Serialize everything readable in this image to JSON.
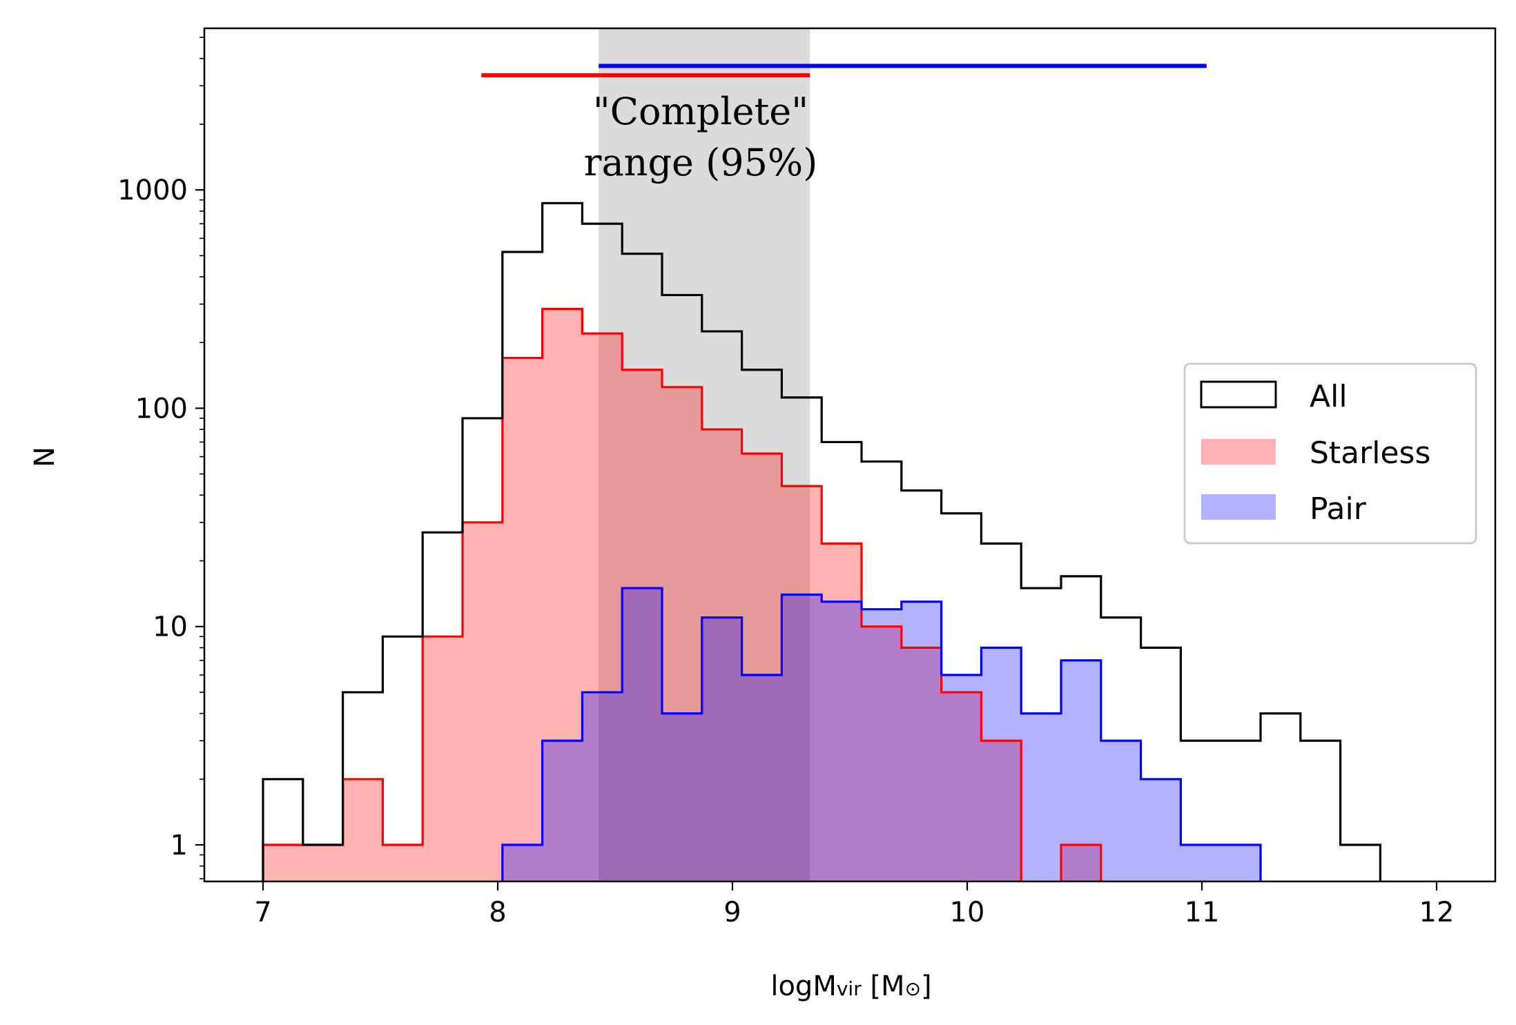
{
  "chart_data": {
    "type": "histogram",
    "xlabel": "logM",
    "xlabel_sub": "vir",
    "xlabel_unit_open": " [M",
    "xlabel_unit_sub": "⊙",
    "xlabel_unit_close": "]",
    "ylabel": "N",
    "xlim": [
      6.75,
      12.25
    ],
    "ylim": [
      0.68,
      5500
    ],
    "yscale": "log",
    "x_ticks": [
      {
        "value": 7,
        "label": "7"
      },
      {
        "value": 8,
        "label": "8"
      },
      {
        "value": 9,
        "label": "9"
      },
      {
        "value": 10,
        "label": "10"
      },
      {
        "value": 11,
        "label": "11"
      },
      {
        "value": 12,
        "label": "12"
      }
    ],
    "y_ticks": [
      {
        "value": 1,
        "label": "1"
      },
      {
        "value": 10,
        "label": "10"
      },
      {
        "value": 100,
        "label": "100"
      },
      {
        "value": 1000,
        "label": "1000"
      }
    ],
    "bin_edges": [
      7.0,
      7.17,
      7.34,
      7.51,
      7.68,
      7.85,
      8.02,
      8.19,
      8.36,
      8.53,
      8.7,
      8.87,
      9.04,
      9.21,
      9.38,
      9.55,
      9.72,
      9.89,
      10.06,
      10.23,
      10.4,
      10.57,
      10.74,
      10.91,
      11.08,
      11.25,
      11.42,
      11.59,
      11.76
    ],
    "series": [
      {
        "name": "All",
        "style": "step",
        "edge_color": "#000000",
        "counts": [
          2,
          1,
          5,
          9,
          27,
          90,
          520,
          870,
          700,
          510,
          330,
          225,
          150,
          112,
          70,
          57,
          42,
          33,
          24,
          15,
          17,
          11,
          8,
          3,
          3,
          4,
          3,
          1
        ]
      },
      {
        "name": "Starless",
        "style": "filled",
        "edge_color": "#ff0000",
        "fill_color": "#ff0000",
        "fill_opacity": 0.3,
        "counts": [
          1,
          1,
          2,
          1,
          9,
          30,
          170,
          285,
          220,
          150,
          125,
          80,
          62,
          44,
          24,
          10,
          8,
          5,
          3,
          0,
          1,
          0,
          0,
          0,
          0,
          0,
          0,
          0
        ]
      },
      {
        "name": "Pair",
        "style": "filled",
        "edge_color": "#0000ff",
        "fill_color": "#0000ff",
        "fill_opacity": 0.3,
        "counts": [
          0,
          0,
          0,
          0,
          0,
          0,
          1,
          3,
          5,
          15,
          4,
          11,
          6,
          14,
          13,
          12,
          13,
          6,
          8,
          4,
          7,
          3,
          2,
          1,
          1,
          0,
          0,
          0
        ]
      }
    ],
    "shaded_region": {
      "x_range": [
        8.43,
        9.33
      ],
      "color": "#c8c8c8"
    },
    "range_bars": [
      {
        "series": "Starless",
        "x_range": [
          7.93,
          9.33
        ],
        "y": 3350,
        "color": "#ff0000"
      },
      {
        "series": "Pair",
        "x_range": [
          8.43,
          11.02
        ],
        "y": 3700,
        "color": "#0000ff"
      }
    ],
    "annotation": {
      "line1": "\"Complete\"",
      "line2": "range (95%)"
    },
    "legend": {
      "position": "center-right",
      "entries": [
        {
          "label": "All",
          "swatch": "outline",
          "color": "#000000"
        },
        {
          "label": "Starless",
          "swatch": "filled",
          "color": "#ff0000"
        },
        {
          "label": "Pair",
          "swatch": "filled",
          "color": "#0000ff"
        }
      ]
    }
  }
}
